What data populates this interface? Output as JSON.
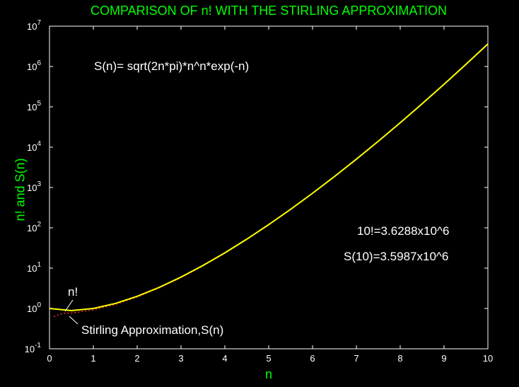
{
  "chart_data": {
    "type": "line",
    "title": "COMPARISON OF n! WITH THE STIRLING APPROXIMATION",
    "xlabel": "n",
    "ylabel": "n! and S(n)",
    "xlim": [
      0,
      10
    ],
    "ylim": [
      0.1,
      10000000
    ],
    "yscale": "log",
    "grid": false,
    "x_ticks": [
      "0",
      "1",
      "2",
      "3",
      "4",
      "5",
      "6",
      "7",
      "8",
      "9",
      "10"
    ],
    "y_ticks": [
      {
        "base": "10",
        "exp": "-1"
      },
      {
        "base": "10",
        "exp": "0"
      },
      {
        "base": "10",
        "exp": "1"
      },
      {
        "base": "10",
        "exp": "2"
      },
      {
        "base": "10",
        "exp": "3"
      },
      {
        "base": "10",
        "exp": "4"
      },
      {
        "base": "10",
        "exp": "5"
      },
      {
        "base": "10",
        "exp": "6"
      },
      {
        "base": "10",
        "exp": "7"
      }
    ],
    "series": [
      {
        "name": "n!",
        "color": "#ffff00",
        "style": "solid",
        "x": [
          0,
          0.5,
          1,
          1.5,
          2,
          2.5,
          3,
          3.5,
          4,
          4.5,
          5,
          5.5,
          6,
          6.5,
          7,
          7.5,
          8,
          8.5,
          9,
          9.5,
          10
        ],
        "y": [
          1,
          0.886,
          1,
          1.329,
          2,
          3.323,
          6,
          11.63,
          24,
          52.34,
          120,
          287.9,
          720,
          1871,
          5040,
          14034,
          40320,
          119292,
          362880,
          1133278,
          3628800
        ]
      },
      {
        "name": "Stirling Approximation,S(n)",
        "color": "#ff3333",
        "style": "dotted",
        "x": [
          0.1,
          0.2,
          0.3,
          0.4,
          0.5,
          0.75,
          1,
          1.5,
          2,
          2.5,
          3,
          3.5,
          4,
          4.5,
          5,
          5.5,
          6,
          6.5,
          7,
          7.5,
          8,
          8.5,
          9,
          9.5,
          10
        ],
        "y": [
          0.626,
          0.701,
          0.744,
          0.774,
          0.769,
          0.842,
          0.922,
          1.254,
          1.919,
          3.213,
          5.836,
          11.35,
          23.51,
          51.37,
          118.0,
          283.5,
          710.1,
          1847,
          4980,
          13879,
          39902,
          118127,
          359537,
          1123433,
          3598696
        ]
      }
    ],
    "annotations": {
      "formula": "S(n)= sqrt(2n*pi)*n^n*exp(-n)",
      "fact10": "10!=3.6288x10^6",
      "s10": "S(10)=3.5987x10^6",
      "nfact_label": "n!",
      "stirling_label": "Stirling Approximation,S(n)"
    }
  }
}
